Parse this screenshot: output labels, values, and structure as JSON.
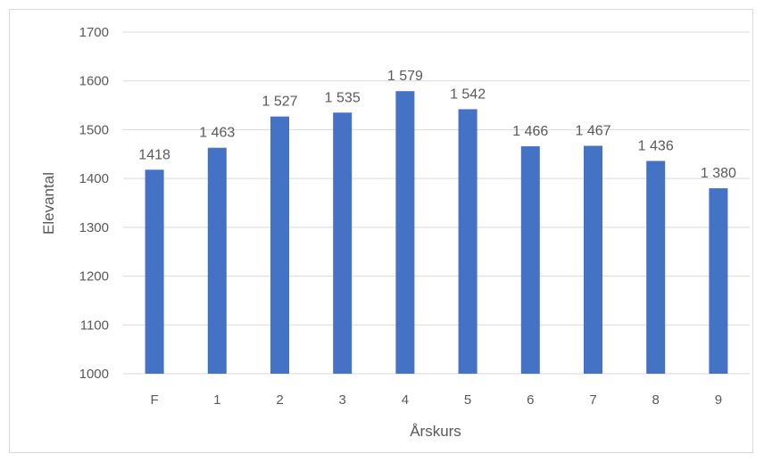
{
  "chart_data": {
    "type": "bar",
    "categories": [
      "F",
      "1",
      "2",
      "3",
      "4",
      "5",
      "6",
      "7",
      "8",
      "9"
    ],
    "values": [
      1418,
      1463,
      1527,
      1535,
      1579,
      1542,
      1466,
      1467,
      1436,
      1380
    ],
    "data_labels": [
      "1418",
      "1 463",
      "1 527",
      "1 535",
      "1 579",
      "1 542",
      "1 466",
      "1 467",
      "1 436",
      "1 380"
    ],
    "title": "",
    "xlabel": "Årskurs",
    "ylabel": "Elevantal",
    "ylim": [
      1000,
      1700
    ],
    "yticks": [
      1000,
      1100,
      1200,
      1300,
      1400,
      1500,
      1600,
      1700
    ],
    "grid": true,
    "legend": "none",
    "bar_color": "#4472c4"
  }
}
